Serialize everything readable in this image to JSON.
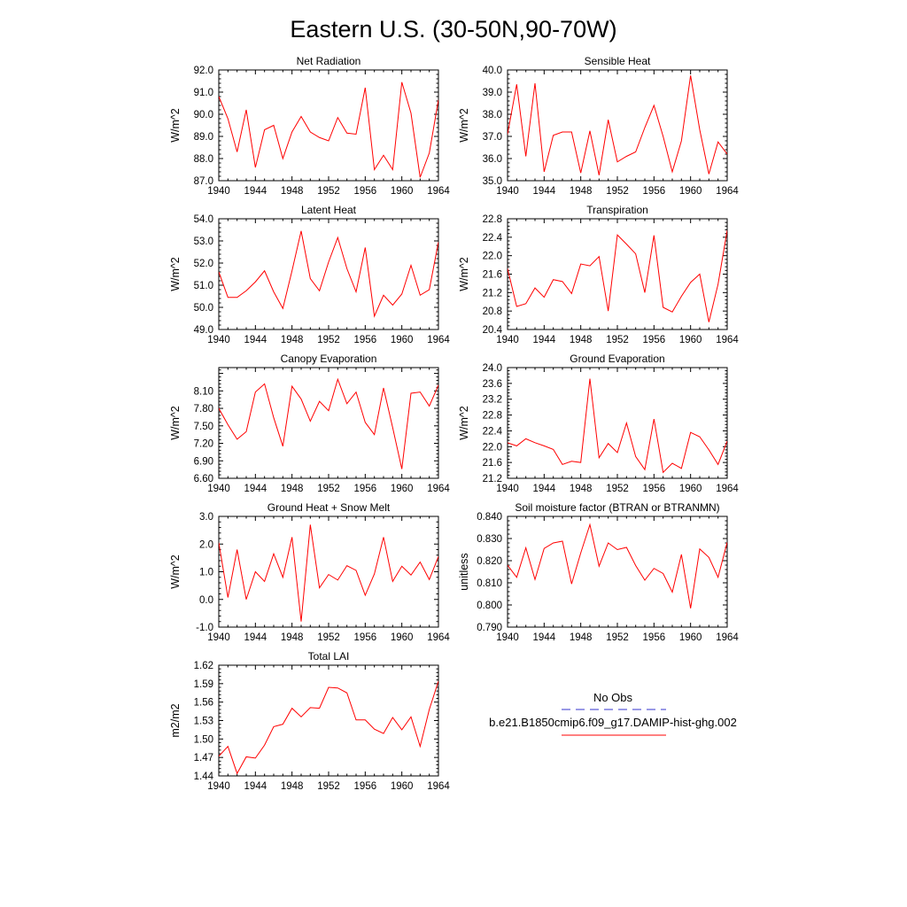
{
  "figure_title": "Eastern U.S. (30-50N,90-70W)",
  "colors": {
    "series": "#ff0000",
    "obs": "#3333cc",
    "axis": "#000000"
  },
  "legend": {
    "obs_label": "No Obs",
    "model_label": "b.e21.B1850cmip6.f09_g17.DAMIP-hist-ghg.002"
  },
  "chart_data": [
    {
      "type": "line",
      "title": "Net Radiation",
      "ylabel": "W/m^2",
      "ylim": [
        87.0,
        92.0
      ],
      "yticks": [
        "87.0",
        "88.0",
        "89.0",
        "90.0",
        "91.0",
        "92.0"
      ],
      "xlim": [
        1940,
        1964
      ],
      "xticks": [
        "1940",
        "1944",
        "1948",
        "1952",
        "1956",
        "1960",
        "1964"
      ],
      "x": [
        1940,
        1941,
        1942,
        1943,
        1944,
        1945,
        1946,
        1947,
        1948,
        1949,
        1950,
        1951,
        1952,
        1953,
        1954,
        1955,
        1956,
        1957,
        1958,
        1959,
        1960,
        1961,
        1962,
        1963,
        1964
      ],
      "series": [
        {
          "values": [
            90.8,
            89.8,
            88.3,
            90.2,
            87.6,
            89.3,
            89.5,
            88.0,
            89.2,
            89.9,
            89.2,
            88.95,
            88.8,
            89.85,
            89.15,
            89.1,
            91.2,
            87.5,
            88.15,
            87.5,
            91.45,
            90.05,
            87.15,
            88.25,
            90.65
          ]
        }
      ],
      "grid": false
    },
    {
      "type": "line",
      "title": "Sensible Heat",
      "ylabel": "W/m^2",
      "ylim": [
        35.0,
        40.0
      ],
      "yticks": [
        "35.0",
        "36.0",
        "37.0",
        "38.0",
        "39.0",
        "40.0"
      ],
      "xlim": [
        1940,
        1964
      ],
      "xticks": [
        "1940",
        "1944",
        "1948",
        "1952",
        "1956",
        "1960",
        "1964"
      ],
      "x": [
        1940,
        1941,
        1942,
        1943,
        1944,
        1945,
        1946,
        1947,
        1948,
        1949,
        1950,
        1951,
        1952,
        1953,
        1954,
        1955,
        1956,
        1957,
        1958,
        1959,
        1960,
        1961,
        1962,
        1963,
        1964
      ],
      "series": [
        {
          "values": [
            37.1,
            39.35,
            36.1,
            39.4,
            35.4,
            37.05,
            37.2,
            37.2,
            35.35,
            37.25,
            35.25,
            37.75,
            35.85,
            36.1,
            36.3,
            37.4,
            38.4,
            37.0,
            35.4,
            36.8,
            39.75,
            37.3,
            35.3,
            36.75,
            36.2
          ]
        }
      ],
      "grid": false
    },
    {
      "type": "line",
      "title": "Latent Heat",
      "ylabel": "W/m^2",
      "ylim": [
        49.0,
        54.0
      ],
      "yticks": [
        "49.0",
        "50.0",
        "51.0",
        "52.0",
        "53.0",
        "54.0"
      ],
      "xlim": [
        1940,
        1964
      ],
      "xticks": [
        "1940",
        "1944",
        "1948",
        "1952",
        "1956",
        "1960",
        "1964"
      ],
      "x": [
        1940,
        1941,
        1942,
        1943,
        1944,
        1945,
        1946,
        1947,
        1948,
        1949,
        1950,
        1951,
        1952,
        1953,
        1954,
        1955,
        1956,
        1957,
        1958,
        1959,
        1960,
        1961,
        1962,
        1963,
        1964
      ],
      "series": [
        {
          "values": [
            51.6,
            50.45,
            50.45,
            50.75,
            51.15,
            51.65,
            50.7,
            49.95,
            51.65,
            53.45,
            51.3,
            50.75,
            52.05,
            53.15,
            51.75,
            50.7,
            52.7,
            49.6,
            50.55,
            50.1,
            50.6,
            51.9,
            50.55,
            50.8,
            52.95
          ]
        }
      ],
      "grid": false
    },
    {
      "type": "line",
      "title": "Transpiration",
      "ylabel": "W/m^2",
      "ylim": [
        20.4,
        22.8
      ],
      "yticks": [
        "20.4",
        "20.8",
        "21.2",
        "21.6",
        "22.0",
        "22.4",
        "22.8"
      ],
      "xlim": [
        1940,
        1964
      ],
      "xticks": [
        "1940",
        "1944",
        "1948",
        "1952",
        "1956",
        "1960",
        "1964"
      ],
      "x": [
        1940,
        1941,
        1942,
        1943,
        1944,
        1945,
        1946,
        1947,
        1948,
        1949,
        1950,
        1951,
        1952,
        1953,
        1954,
        1955,
        1956,
        1957,
        1958,
        1959,
        1960,
        1961,
        1962,
        1963,
        1964
      ],
      "series": [
        {
          "values": [
            21.72,
            20.9,
            20.96,
            21.3,
            21.1,
            21.48,
            21.44,
            21.18,
            21.82,
            21.78,
            21.98,
            20.8,
            22.45,
            22.25,
            22.04,
            21.2,
            22.44,
            20.88,
            20.78,
            21.12,
            21.42,
            21.6,
            20.56,
            21.38,
            22.55
          ]
        }
      ],
      "grid": false
    },
    {
      "type": "line",
      "title": "Canopy Evaporation",
      "ylabel": "W/m^2",
      "ylim": [
        6.6,
        8.5
      ],
      "yticks": [
        "6.60",
        "6.90",
        "7.20",
        "7.50",
        "7.80",
        "8.10"
      ],
      "xlim": [
        1940,
        1964
      ],
      "xticks": [
        "1940",
        "1944",
        "1948",
        "1952",
        "1956",
        "1960",
        "1964"
      ],
      "x": [
        1940,
        1941,
        1942,
        1943,
        1944,
        1945,
        1946,
        1947,
        1948,
        1949,
        1950,
        1951,
        1952,
        1953,
        1954,
        1955,
        1956,
        1957,
        1958,
        1959,
        1960,
        1961,
        1962,
        1963,
        1964
      ],
      "series": [
        {
          "values": [
            7.8,
            7.52,
            7.27,
            7.4,
            8.08,
            8.22,
            7.64,
            7.15,
            8.18,
            7.96,
            7.58,
            7.92,
            7.76,
            8.3,
            7.88,
            8.08,
            7.56,
            7.35,
            8.15,
            7.47,
            6.76,
            8.06,
            8.08,
            7.84,
            8.2
          ]
        }
      ],
      "grid": false
    },
    {
      "type": "line",
      "title": "Ground Evaporation",
      "ylabel": "W/m^2",
      "ylim": [
        21.2,
        24.0
      ],
      "yticks": [
        "21.2",
        "21.6",
        "22.0",
        "22.4",
        "22.8",
        "23.2",
        "23.6",
        "24.0"
      ],
      "xlim": [
        1940,
        1964
      ],
      "xticks": [
        "1940",
        "1944",
        "1948",
        "1952",
        "1956",
        "1960",
        "1964"
      ],
      "x": [
        1940,
        1941,
        1942,
        1943,
        1944,
        1945,
        1946,
        1947,
        1948,
        1949,
        1950,
        1951,
        1952,
        1953,
        1954,
        1955,
        1956,
        1957,
        1958,
        1959,
        1960,
        1961,
        1962,
        1963,
        1964
      ],
      "series": [
        {
          "values": [
            22.1,
            22.02,
            22.2,
            22.1,
            22.02,
            21.93,
            21.55,
            21.63,
            21.6,
            23.72,
            21.72,
            22.08,
            21.85,
            22.6,
            21.75,
            21.42,
            22.7,
            21.35,
            21.58,
            21.45,
            22.36,
            22.25,
            21.92,
            21.55,
            22.14
          ]
        }
      ],
      "grid": false
    },
    {
      "type": "line",
      "title": "Ground Heat + Snow Melt",
      "ylabel": "W/m^2",
      "ylim": [
        -1.0,
        3.0
      ],
      "yticks": [
        "-1.0",
        "0.0",
        "1.0",
        "2.0",
        "3.0"
      ],
      "xlim": [
        1940,
        1964
      ],
      "xticks": [
        "1940",
        "1944",
        "1948",
        "1952",
        "1956",
        "1960",
        "1964"
      ],
      "x": [
        1940,
        1941,
        1942,
        1943,
        1944,
        1945,
        1946,
        1947,
        1948,
        1949,
        1950,
        1951,
        1952,
        1953,
        1954,
        1955,
        1956,
        1957,
        1958,
        1959,
        1960,
        1961,
        1962,
        1963,
        1964
      ],
      "series": [
        {
          "values": [
            2.05,
            0.07,
            1.8,
            0.0,
            1.0,
            0.65,
            1.65,
            0.8,
            2.25,
            -0.8,
            2.7,
            0.42,
            0.9,
            0.7,
            1.22,
            1.05,
            0.15,
            0.92,
            2.25,
            0.65,
            1.2,
            0.88,
            1.35,
            0.72,
            1.55
          ]
        }
      ],
      "grid": false
    },
    {
      "type": "line",
      "title": "Soil moisture factor (BTRAN or BTRANMN)",
      "ylabel": "unitless",
      "ylim": [
        0.79,
        0.84
      ],
      "yticks": [
        "0.790",
        "0.800",
        "0.810",
        "0.820",
        "0.830",
        "0.840"
      ],
      "xlim": [
        1940,
        1964
      ],
      "xticks": [
        "1940",
        "1944",
        "1948",
        "1952",
        "1956",
        "1960",
        "1964"
      ],
      "x": [
        1940,
        1941,
        1942,
        1943,
        1944,
        1945,
        1946,
        1947,
        1948,
        1949,
        1950,
        1951,
        1952,
        1953,
        1954,
        1955,
        1956,
        1957,
        1958,
        1959,
        1960,
        1961,
        1962,
        1963,
        1964
      ],
      "series": [
        {
          "values": [
            0.818,
            0.8125,
            0.8258,
            0.8115,
            0.8255,
            0.828,
            0.8288,
            0.8095,
            0.8235,
            0.8363,
            0.8175,
            0.828,
            0.825,
            0.826,
            0.8178,
            0.8112,
            0.8165,
            0.8142,
            0.8058,
            0.8228,
            0.7985,
            0.8253,
            0.8215,
            0.8125,
            0.8283
          ]
        }
      ],
      "grid": false
    },
    {
      "type": "line",
      "title": "Total LAI",
      "ylabel": "m2/m2",
      "ylim": [
        1.44,
        1.62
      ],
      "yticks": [
        "1.44",
        "1.47",
        "1.50",
        "1.53",
        "1.56",
        "1.59",
        "1.62"
      ],
      "xlim": [
        1940,
        1964
      ],
      "xticks": [
        "1940",
        "1944",
        "1948",
        "1952",
        "1956",
        "1960",
        "1964"
      ],
      "x": [
        1940,
        1941,
        1942,
        1943,
        1944,
        1945,
        1946,
        1947,
        1948,
        1949,
        1950,
        1951,
        1952,
        1953,
        1954,
        1955,
        1956,
        1957,
        1958,
        1959,
        1960,
        1961,
        1962,
        1963,
        1964
      ],
      "series": [
        {
          "values": [
            1.472,
            1.488,
            1.444,
            1.471,
            1.469,
            1.49,
            1.52,
            1.524,
            1.55,
            1.536,
            1.551,
            1.55,
            1.584,
            1.583,
            1.575,
            1.531,
            1.531,
            1.516,
            1.509,
            1.535,
            1.515,
            1.536,
            1.488,
            1.548,
            1.594
          ]
        }
      ],
      "grid": false
    }
  ]
}
